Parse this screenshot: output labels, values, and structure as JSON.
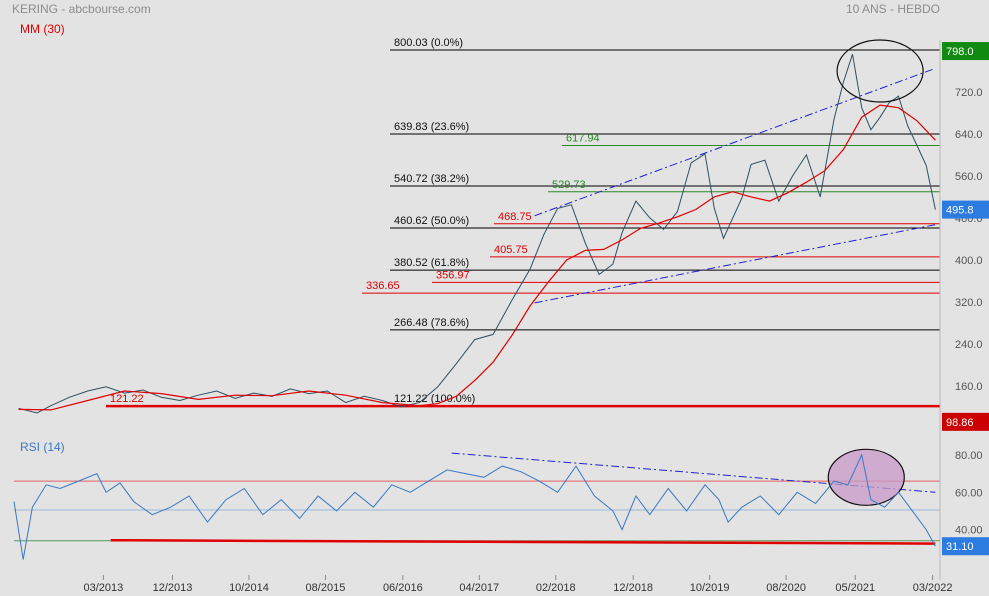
{
  "header": {
    "title": "KERING - abcbourse.com",
    "period": "10 ANS - HEBDO",
    "ma_legend": "MM (30)",
    "rsi_legend": "RSI (14)"
  },
  "colors": {
    "background": "#e3e3e3",
    "price": "#2f4f5f",
    "moving_average": "#e00000",
    "rsi": "#3a78c2",
    "fib_line": "#000000",
    "support_red": "#e00000",
    "support_green": "#2a8a2a",
    "trend_blue": "#2020cc",
    "badge_green": "#118a11",
    "badge_blue": "#2b7be0",
    "badge_red": "#cc0000"
  },
  "chart_data": [
    {
      "type": "line",
      "panel": "price",
      "yaxis_ticks": [
        798.0,
        720.0,
        640.0,
        560.0,
        480.0,
        400.0,
        320.0,
        240.0,
        160.0,
        98.86
      ],
      "ylim": [
        90,
        820
      ],
      "x_tick_labels": [
        "03/2013",
        "12/2013",
        "10/2014",
        "08/2015",
        "06/2016",
        "04/2017",
        "02/2018",
        "12/2018",
        "10/2019",
        "08/2020",
        "05/2021",
        "03/2022"
      ],
      "x_tick_dates": [
        2013.17,
        2013.92,
        2014.75,
        2015.58,
        2016.42,
        2017.25,
        2018.08,
        2018.92,
        2019.75,
        2020.58,
        2021.33,
        2022.17
      ],
      "xlim": [
        2012.2,
        2022.25
      ],
      "last_price": "495.8",
      "price_high_label": "798.0",
      "price_low_label": "98.86",
      "fibonacci_levels": [
        {
          "value": 800.03,
          "label": "800.03  (0.0%)"
        },
        {
          "value": 639.83,
          "label": "639.83  (23.6%)"
        },
        {
          "value": 540.72,
          "label": "540.72  (38.2%)"
        },
        {
          "value": 460.62,
          "label": "460.62  (50.0%)"
        },
        {
          "value": 380.52,
          "label": "380.52  (61.8%)"
        },
        {
          "value": 266.48,
          "label": "266.48  (78.6%)"
        },
        {
          "value": 121.22,
          "label": "121.22  (100.0%)"
        }
      ],
      "support_levels": [
        {
          "value": 617.94,
          "label": "617.94",
          "color": "green"
        },
        {
          "value": 529.73,
          "label": "529.73",
          "color": "green"
        },
        {
          "value": 468.75,
          "label": "468.75",
          "color": "red"
        },
        {
          "value": 405.75,
          "label": "405.75",
          "color": "red"
        },
        {
          "value": 356.97,
          "label": "356.97",
          "color": "red"
        },
        {
          "value": 336.65,
          "label": "336.65",
          "color": "red"
        },
        {
          "value": 121.22,
          "label": "121.22",
          "color": "red"
        }
      ],
      "series": [
        {
          "values_x": [
            2012.25,
            2012.45,
            2012.6,
            2012.8,
            2013.0,
            2013.2,
            2013.4,
            2013.6,
            2013.8,
            2014.0,
            2014.2,
            2014.4,
            2014.6,
            2014.8,
            2015.0,
            2015.2,
            2015.4,
            2015.6,
            2015.8,
            2016.0,
            2016.2,
            2016.4,
            2016.6,
            2016.8,
            2017.0,
            2017.2,
            2017.4,
            2017.6,
            2017.8,
            2017.95,
            2018.1,
            2018.25,
            2018.4,
            2018.55,
            2018.7,
            2018.8,
            2018.95,
            2019.1,
            2019.25,
            2019.4,
            2019.55,
            2019.7,
            2019.8,
            2019.9,
            2020.1,
            2020.2,
            2020.35,
            2020.5,
            2020.65,
            2020.8,
            2020.95,
            2021.1,
            2021.2,
            2021.3,
            2021.4,
            2021.5,
            2021.6,
            2021.7,
            2021.8,
            2021.9,
            2022.0,
            2022.1,
            2022.2
          ],
          "values_y": [
            117,
            108,
            122,
            138,
            150,
            158,
            146,
            152,
            138,
            132,
            142,
            150,
            136,
            146,
            140,
            154,
            145,
            150,
            128,
            140,
            132,
            120,
            128,
            158,
            202,
            248,
            258,
            322,
            382,
            448,
            498,
            505,
            432,
            372,
            392,
            452,
            512,
            480,
            458,
            492,
            585,
            602,
            498,
            441,
            518,
            582,
            590,
            512,
            560,
            600,
            520,
            668,
            738,
            792,
            690,
            648,
            672,
            700,
            712,
            655,
            618,
            580,
            495.8
          ]
        },
        {
          "values_x": [
            2012.25,
            2012.6,
            2013.0,
            2013.4,
            2013.8,
            2014.2,
            2014.6,
            2015.0,
            2015.4,
            2015.8,
            2016.2,
            2016.6,
            2016.8,
            2017.0,
            2017.2,
            2017.4,
            2017.6,
            2017.8,
            2018.0,
            2018.2,
            2018.4,
            2018.6,
            2018.8,
            2019.0,
            2019.2,
            2019.4,
            2019.6,
            2019.8,
            2020.0,
            2020.2,
            2020.4,
            2020.6,
            2020.8,
            2021.0,
            2021.2,
            2021.4,
            2021.6,
            2021.8,
            2022.0,
            2022.2
          ],
          "values_y": [
            115,
            114,
            132,
            150,
            145,
            134,
            142,
            141,
            150,
            142,
            128,
            122,
            126,
            140,
            170,
            205,
            255,
            312,
            358,
            400,
            418,
            420,
            438,
            460,
            470,
            482,
            496,
            520,
            530,
            520,
            512,
            528,
            548,
            570,
            610,
            672,
            695,
            690,
            665,
            628
          ]
        }
      ],
      "trendlines": [
        {
          "x": [
            2017.85,
            2022.2
          ],
          "y": [
            484,
            765
          ]
        },
        {
          "x": [
            2017.85,
            2022.2
          ],
          "y": [
            318,
            467
          ]
        }
      ],
      "highlight_ellipse": {
        "cx": 2021.6,
        "cy": 760
      }
    },
    {
      "type": "line",
      "panel": "rsi",
      "yaxis_ticks": [
        80.0,
        60.0,
        40.0
      ],
      "ylim": [
        25,
        85
      ],
      "last_value": "31.10",
      "reference_levels": [
        66,
        50.5,
        34
      ],
      "series": [
        {
          "values_x": [
            2012.2,
            2012.3,
            2012.4,
            2012.55,
            2012.7,
            2012.9,
            2013.1,
            2013.2,
            2013.35,
            2013.5,
            2013.7,
            2013.9,
            2014.1,
            2014.3,
            2014.5,
            2014.7,
            2014.9,
            2015.1,
            2015.3,
            2015.5,
            2015.7,
            2015.9,
            2016.1,
            2016.3,
            2016.5,
            2016.7,
            2016.9,
            2017.1,
            2017.3,
            2017.5,
            2017.7,
            2017.9,
            2018.1,
            2018.3,
            2018.5,
            2018.7,
            2018.8,
            2018.95,
            2019.1,
            2019.3,
            2019.5,
            2019.7,
            2019.85,
            2019.95,
            2020.1,
            2020.3,
            2020.5,
            2020.7,
            2020.9,
            2021.1,
            2021.25,
            2021.4,
            2021.5,
            2021.65,
            2021.8,
            2021.95,
            2022.1,
            2022.2
          ],
          "values_y": [
            55,
            24,
            52,
            64,
            62,
            66,
            70,
            60,
            65,
            55,
            48,
            52,
            58,
            44,
            56,
            62,
            48,
            56,
            46,
            58,
            50,
            60,
            52,
            64,
            60,
            66,
            72,
            70,
            68,
            74,
            71,
            66,
            60,
            74,
            58,
            50,
            40,
            58,
            48,
            62,
            50,
            64,
            56,
            44,
            52,
            58,
            48,
            60,
            54,
            66,
            64,
            80,
            56,
            52,
            60,
            50,
            40,
            31.1
          ]
        }
      ],
      "trendlines": [
        {
          "x": [
            2016.95,
            2022.2
          ],
          "y": [
            81,
            60
          ]
        },
        {
          "x": [
            2013.25,
            2022.2
          ],
          "y": [
            34.3,
            32.5
          ]
        }
      ],
      "highlight_ellipse": {
        "cx": 2021.45,
        "cy": 68
      }
    }
  ]
}
